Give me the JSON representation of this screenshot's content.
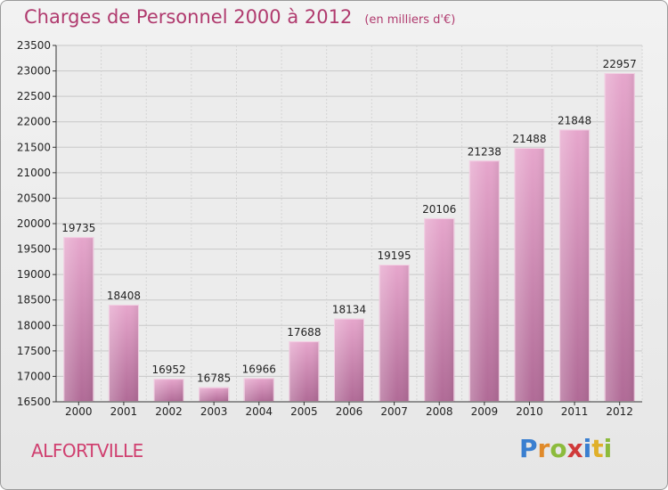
{
  "header": {
    "title": "Charges de Personnel 2000 à 2012",
    "subtitle": "(en milliers d'€)"
  },
  "footer": {
    "city": "ALFORTVILLE",
    "logo_letters": [
      "P",
      "r",
      "o",
      "x",
      "i",
      "t",
      "i"
    ],
    "logo_colors": [
      "#3a7fd0",
      "#e08a2a",
      "#8cbb3c",
      "#d03a3a",
      "#3a7fd0",
      "#e0b02a",
      "#8cbb3c"
    ]
  },
  "chart_data": {
    "type": "bar",
    "title": "Charges de Personnel 2000 à 2012",
    "subtitle": "(en milliers d'€)",
    "xlabel": "",
    "ylabel": "",
    "categories": [
      "2000",
      "2001",
      "2002",
      "2003",
      "2004",
      "2005",
      "2006",
      "2007",
      "2008",
      "2009",
      "2010",
      "2011",
      "2012"
    ],
    "values": [
      19735,
      18408,
      16952,
      16785,
      16966,
      17688,
      18134,
      19195,
      20106,
      21238,
      21488,
      21848,
      22957
    ],
    "ylim": [
      16500,
      23500
    ],
    "yticks": [
      16500,
      17000,
      17500,
      18000,
      18500,
      19000,
      19500,
      20000,
      20500,
      21000,
      21500,
      22000,
      22500,
      23000,
      23500
    ],
    "grid": true,
    "bar_color": "#c9699f"
  }
}
